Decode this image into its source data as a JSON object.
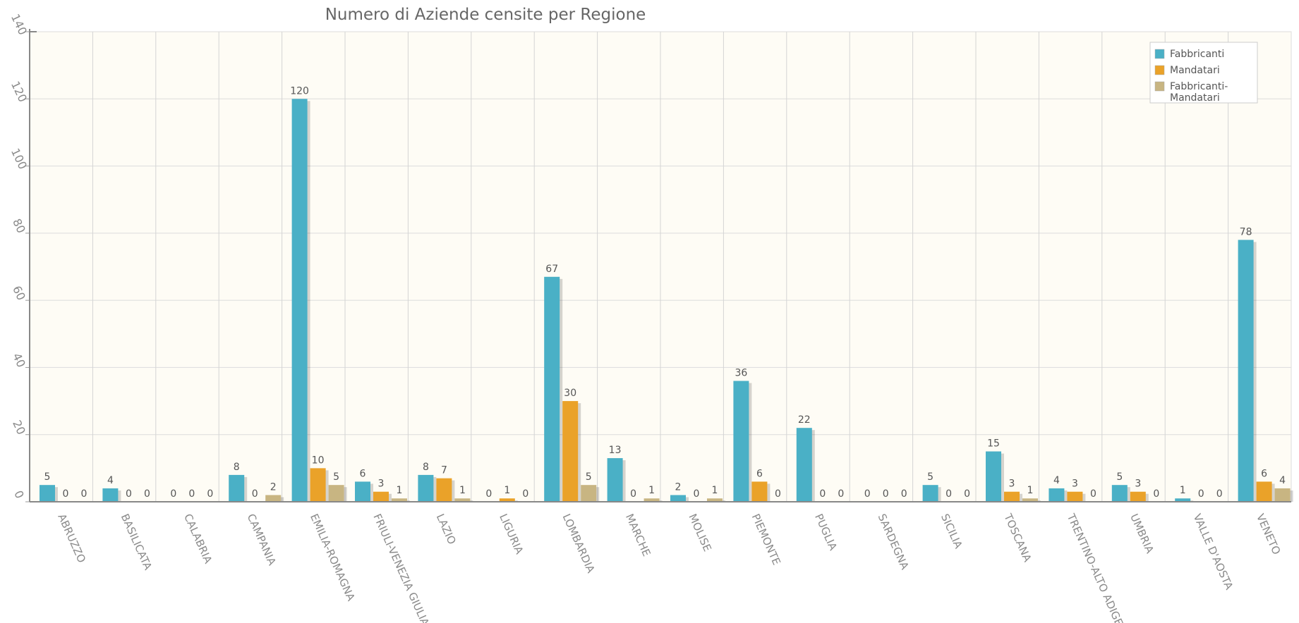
{
  "chart_data": {
    "type": "bar",
    "title": "Numero di Aziende censite per Regione",
    "xlabel": "",
    "ylabel": "",
    "ylim": [
      0,
      140
    ],
    "yticks": [
      0,
      20,
      40,
      60,
      80,
      100,
      120,
      140
    ],
    "grid": true,
    "legend_position": "top-right",
    "categories": [
      "ABRUZZO",
      "BASILICATA",
      "CALABRIA",
      "CAMPANIA",
      "EMILIA-ROMAGNA",
      "FRIULI-VENEZIA GIULIA",
      "LAZIO",
      "LIGURIA",
      "LOMBARDIA",
      "MARCHE",
      "MOLISE",
      "PIEMONTE",
      "PUGLIA",
      "SARDEGNA",
      "SICILIA",
      "TOSCANA",
      "TRENTINO-ALTO ADIGE",
      "UMBRIA",
      "VALLE D'AOSTA",
      "VENETO"
    ],
    "series": [
      {
        "name": "Fabbricanti",
        "color": "#4ab0c6",
        "values": [
          5,
          4,
          0,
          8,
          120,
          6,
          8,
          0,
          67,
          13,
          2,
          36,
          22,
          0,
          5,
          15,
          4,
          5,
          1,
          78
        ]
      },
      {
        "name": "Mandatari",
        "color": "#eaa229",
        "values": [
          0,
          0,
          0,
          0,
          10,
          3,
          7,
          1,
          30,
          0,
          0,
          6,
          0,
          0,
          0,
          3,
          3,
          3,
          0,
          6
        ]
      },
      {
        "name": "Fabbricanti-Mandatari",
        "legend_lines": [
          "Fabbricanti-",
          "Mandatari"
        ],
        "color": "#c8b582",
        "values": [
          0,
          0,
          0,
          2,
          5,
          1,
          1,
          0,
          5,
          1,
          1,
          0,
          0,
          0,
          0,
          1,
          0,
          0,
          0,
          4
        ]
      }
    ]
  }
}
